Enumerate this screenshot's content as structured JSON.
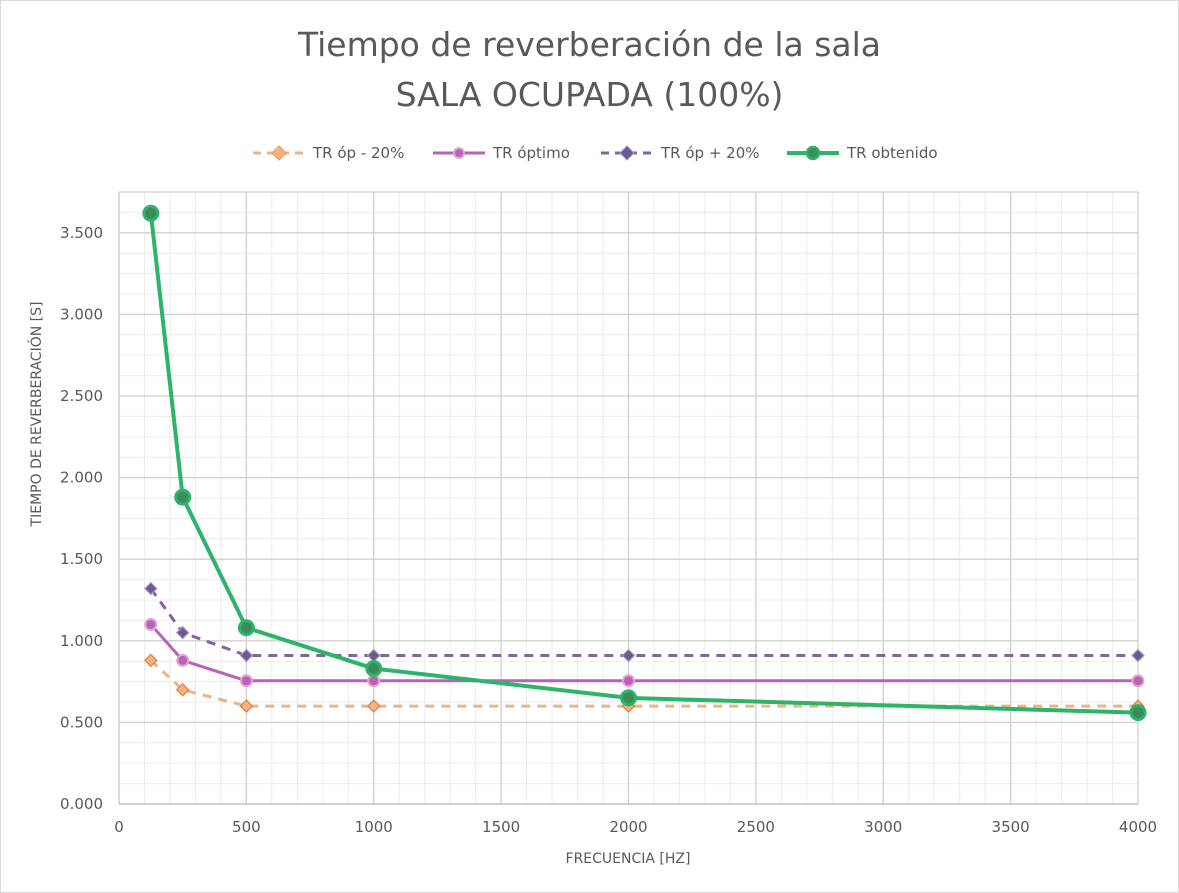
{
  "chart_data": {
    "type": "scatter",
    "title": "Tiempo de reverberación de la sala",
    "subtitle": "SALA OCUPADA (100%)",
    "xlabel": "FRECUENCIA [HZ]",
    "ylabel": "TIEMPO DE REVERBERACIÓN [S]",
    "xlim": [
      0,
      4000
    ],
    "ylim": [
      0,
      3.75
    ],
    "x_ticks": [
      0,
      500,
      1000,
      1500,
      2000,
      2500,
      3000,
      3500,
      4000
    ],
    "x_tick_labels": [
      "0",
      "500",
      "1000",
      "1500",
      "2000",
      "2500",
      "3000",
      "3500",
      "4000"
    ],
    "y_ticks": [
      0,
      0.5,
      1.0,
      1.5,
      2.0,
      2.5,
      3.0,
      3.5
    ],
    "y_tick_labels": [
      "0.000",
      "0.500",
      "1.000",
      "1.500",
      "2.000",
      "2.500",
      "3.000",
      "3.500"
    ],
    "grid": true,
    "legend_position": "top",
    "series": [
      {
        "name": "TR óp - 20%",
        "color": "#f4b183",
        "marker": "diamond",
        "line": "dashed",
        "x": [
          125,
          250,
          500,
          1000,
          2000,
          4000
        ],
        "y": [
          0.88,
          0.7,
          0.6,
          0.6,
          0.6,
          0.6
        ]
      },
      {
        "name": "TR óptimo",
        "color": "#b565b5",
        "marker": "circle",
        "line": "solid",
        "x": [
          125,
          250,
          500,
          1000,
          2000,
          4000
        ],
        "y": [
          1.1,
          0.88,
          0.755,
          0.755,
          0.755,
          0.755
        ]
      },
      {
        "name": "TR óp + 20%",
        "color": "#8064a2",
        "marker": "diamond",
        "line": "dashed",
        "x": [
          125,
          250,
          500,
          1000,
          2000,
          4000
        ],
        "y": [
          1.32,
          1.05,
          0.91,
          0.91,
          0.91,
          0.91
        ]
      },
      {
        "name": "TR obtenido",
        "color": "#2db36a",
        "marker": "circle-large",
        "line": "solid",
        "x": [
          125,
          250,
          500,
          1000,
          2000,
          4000
        ],
        "y": [
          3.62,
          1.88,
          1.08,
          0.83,
          0.65,
          0.56
        ]
      }
    ]
  }
}
